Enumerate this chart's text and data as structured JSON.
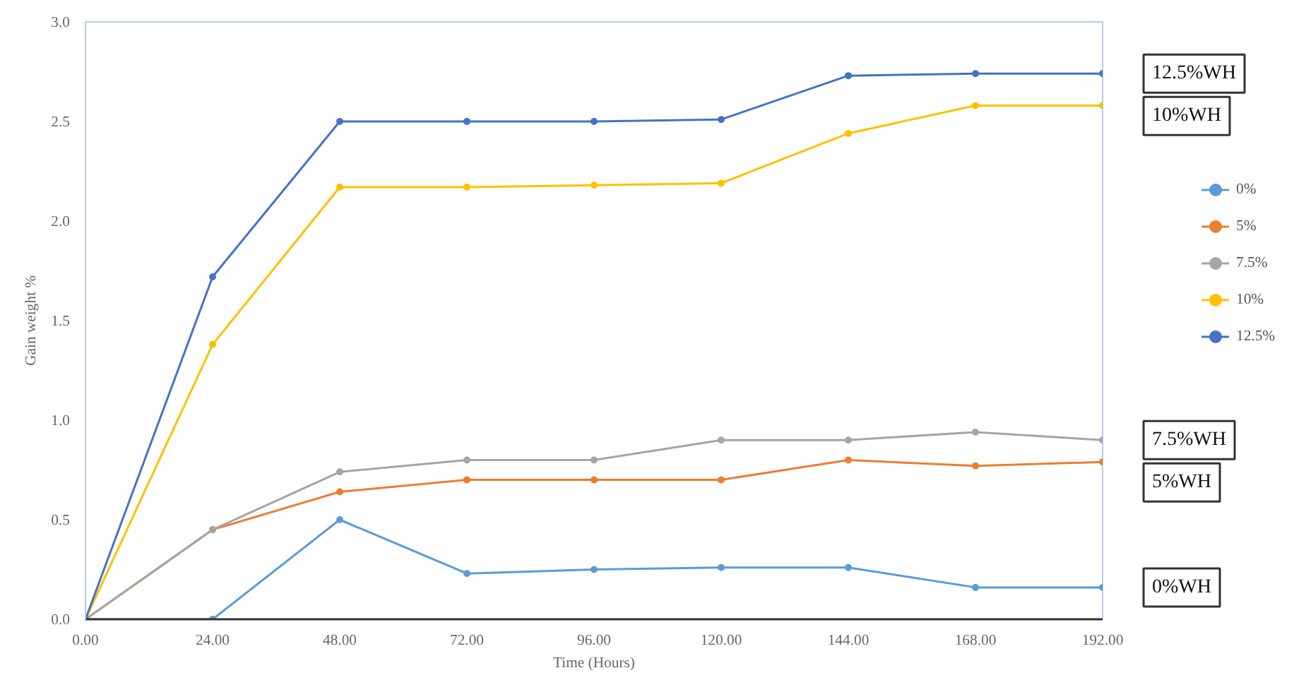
{
  "chart_data": {
    "type": "line",
    "xlabel": "Time (Hours)",
    "ylabel": "Gain weight %",
    "x": [
      0,
      24,
      48,
      72,
      96,
      120,
      144,
      168,
      192
    ],
    "series": [
      {
        "name": "0%",
        "color": "#5b9bd5",
        "values": [
          0,
          0,
          0.5,
          0.23,
          0.25,
          0.26,
          0.26,
          0.16,
          0.16
        ]
      },
      {
        "name": "5%",
        "color": "#ed7d31",
        "values": [
          0,
          0.45,
          0.64,
          0.7,
          0.7,
          0.7,
          0.8,
          0.77,
          0.79
        ]
      },
      {
        "name": "7.5%",
        "color": "#a5a5a5",
        "values": [
          0,
          0.45,
          0.74,
          0.8,
          0.8,
          0.9,
          0.9,
          0.94,
          0.9
        ]
      },
      {
        "name": "10%",
        "color": "#ffc000",
        "values": [
          0,
          1.38,
          2.17,
          2.17,
          2.18,
          2.19,
          2.44,
          2.58,
          2.58
        ]
      },
      {
        "name": "12.5%",
        "color": "#4472c4",
        "values": [
          0,
          1.72,
          2.5,
          2.5,
          2.5,
          2.51,
          2.73,
          2.74,
          2.74
        ]
      }
    ],
    "xlim": [
      0,
      192
    ],
    "ylim": [
      0,
      3
    ],
    "xticks": [
      {
        "value": 0,
        "label": "0.00"
      },
      {
        "value": 24,
        "label": "24.00"
      },
      {
        "value": 48,
        "label": "48.00"
      },
      {
        "value": 72,
        "label": "72.00"
      },
      {
        "value": 96,
        "label": "96.00"
      },
      {
        "value": 120,
        "label": "120.00"
      },
      {
        "value": 144,
        "label": "144.00"
      },
      {
        "value": 168,
        "label": "168.00"
      },
      {
        "value": 192,
        "label": "192.00"
      }
    ],
    "yticks": [
      {
        "value": 0,
        "label": "0.0"
      },
      {
        "value": 0.5,
        "label": "0.5"
      },
      {
        "value": 1,
        "label": "1.0"
      },
      {
        "value": 1.5,
        "label": "1.5"
      },
      {
        "value": 2,
        "label": "2.0"
      },
      {
        "value": 2.5,
        "label": "2.5"
      },
      {
        "value": 3,
        "label": "3.0"
      }
    ],
    "annotations": [
      "12.5%WH",
      "10%WH",
      "7.5%WH",
      "5%WH",
      "0%WH"
    ],
    "grid": false,
    "legend": "right",
    "marker": "circle",
    "line_style": "solid"
  }
}
